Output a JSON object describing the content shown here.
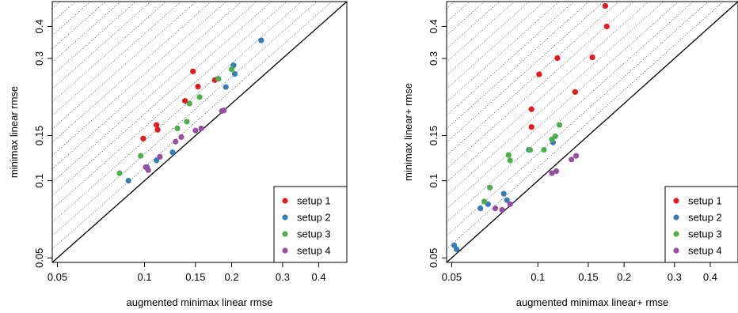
{
  "chart_data": [
    {
      "type": "scatter",
      "xlabel": "augmented minimax linear rmse",
      "ylabel": "minimax linear rmse",
      "scale": "log",
      "xlim": [
        0.048,
        0.5
      ],
      "ylim": [
        0.048,
        0.5
      ],
      "xticks": [
        {
          "v": 0.05,
          "label": "0.05"
        },
        {
          "v": 0.1,
          "label": "0.1"
        },
        {
          "v": 0.15,
          "label": "0.15"
        },
        {
          "v": 0.2,
          "label": "0.2"
        },
        {
          "v": 0.3,
          "label": "0.3"
        },
        {
          "v": 0.4,
          "label": "0.4"
        }
      ],
      "yticks": [
        {
          "v": 0.05,
          "label": "0.05"
        },
        {
          "v": 0.1,
          "label": "0.1"
        },
        {
          "v": 0.15,
          "label": "0.15"
        },
        {
          "v": 0.3,
          "label": "0.3"
        },
        {
          "v": 0.4,
          "label": "0.4"
        }
      ],
      "reference_line": "y = x",
      "guide_lines": "dotted lines y = k·x above the diagonal",
      "legend_position": "bottom-right",
      "series": [
        {
          "name": "setup 1",
          "color": "#e41a1c",
          "points": [
            [
              0.099,
              0.146
            ],
            [
              0.11,
              0.165
            ],
            [
              0.111,
              0.158
            ],
            [
              0.138,
              0.205
            ],
            [
              0.147,
              0.267
            ],
            [
              0.153,
              0.233
            ],
            [
              0.175,
              0.247
            ]
          ]
        },
        {
          "name": "setup 2",
          "color": "#377eb8",
          "points": [
            [
              0.088,
              0.1
            ],
            [
              0.102,
              0.113
            ],
            [
              0.11,
              0.12
            ],
            [
              0.125,
              0.129
            ],
            [
              0.191,
              0.232
            ],
            [
              0.203,
              0.282
            ],
            [
              0.205,
              0.261
            ],
            [
              0.253,
              0.353
            ]
          ]
        },
        {
          "name": "setup 3",
          "color": "#4daf4a",
          "points": [
            [
              0.082,
              0.107
            ],
            [
              0.097,
              0.125
            ],
            [
              0.13,
              0.16
            ],
            [
              0.14,
              0.17
            ],
            [
              0.143,
              0.2
            ],
            [
              0.155,
              0.212
            ],
            [
              0.18,
              0.25
            ],
            [
              0.2,
              0.272
            ]
          ]
        },
        {
          "name": "setup 4",
          "color": "#984ea3",
          "points": [
            [
              0.101,
              0.113
            ],
            [
              0.103,
              0.11
            ],
            [
              0.113,
              0.124
            ],
            [
              0.128,
              0.142
            ],
            [
              0.134,
              0.148
            ],
            [
              0.15,
              0.157
            ],
            [
              0.157,
              0.16
            ],
            [
              0.185,
              0.187
            ],
            [
              0.188,
              0.188
            ]
          ]
        }
      ]
    },
    {
      "type": "scatter",
      "xlabel": "augmented minimax linear+ rmse",
      "ylabel": "minimax linear+ rmse",
      "scale": "log",
      "xlim": [
        0.048,
        0.5
      ],
      "ylim": [
        0.048,
        0.5
      ],
      "xticks": [
        {
          "v": 0.05,
          "label": "0.05"
        },
        {
          "v": 0.1,
          "label": "0.1"
        },
        {
          "v": 0.15,
          "label": "0.15"
        },
        {
          "v": 0.2,
          "label": "0.2"
        },
        {
          "v": 0.3,
          "label": "0.3"
        },
        {
          "v": 0.4,
          "label": "0.4"
        }
      ],
      "yticks": [
        {
          "v": 0.05,
          "label": "0.05"
        },
        {
          "v": 0.1,
          "label": "0.1"
        },
        {
          "v": 0.15,
          "label": "0.15"
        },
        {
          "v": 0.3,
          "label": "0.3"
        },
        {
          "v": 0.4,
          "label": "0.4"
        }
      ],
      "reference_line": "y = x",
      "guide_lines": "dotted lines y = k·x above the diagonal",
      "legend_position": "bottom-right",
      "series": [
        {
          "name": "setup 1",
          "color": "#e41a1c",
          "points": [
            [
              0.095,
              0.19
            ],
            [
              0.095,
              0.162
            ],
            [
              0.101,
              0.26
            ],
            [
              0.117,
              0.301
            ],
            [
              0.135,
              0.222
            ],
            [
              0.155,
              0.303
            ],
            [
              0.172,
              0.481
            ],
            [
              0.174,
              0.4
            ]
          ]
        },
        {
          "name": "setup 2",
          "color": "#377eb8",
          "points": [
            [
              0.051,
              0.056
            ],
            [
              0.052,
              0.054
            ],
            [
              0.063,
              0.078
            ],
            [
              0.067,
              0.081
            ],
            [
              0.076,
              0.089
            ],
            [
              0.078,
              0.084
            ],
            [
              0.093,
              0.132
            ],
            [
              0.113,
              0.141
            ]
          ]
        },
        {
          "name": "setup 3",
          "color": "#4daf4a",
          "points": [
            [
              0.065,
              0.083
            ],
            [
              0.068,
              0.094
            ],
            [
              0.079,
              0.126
            ],
            [
              0.08,
              0.12
            ],
            [
              0.094,
              0.132
            ],
            [
              0.105,
              0.132
            ],
            [
              0.112,
              0.145
            ],
            [
              0.115,
              0.149
            ],
            [
              0.119,
              0.165
            ]
          ]
        },
        {
          "name": "setup 4",
          "color": "#984ea3",
          "points": [
            [
              0.071,
              0.078
            ],
            [
              0.075,
              0.077
            ],
            [
              0.08,
              0.081
            ],
            [
              0.112,
              0.107
            ],
            [
              0.116,
              0.109
            ],
            [
              0.131,
              0.121
            ],
            [
              0.136,
              0.125
            ]
          ]
        }
      ]
    }
  ]
}
